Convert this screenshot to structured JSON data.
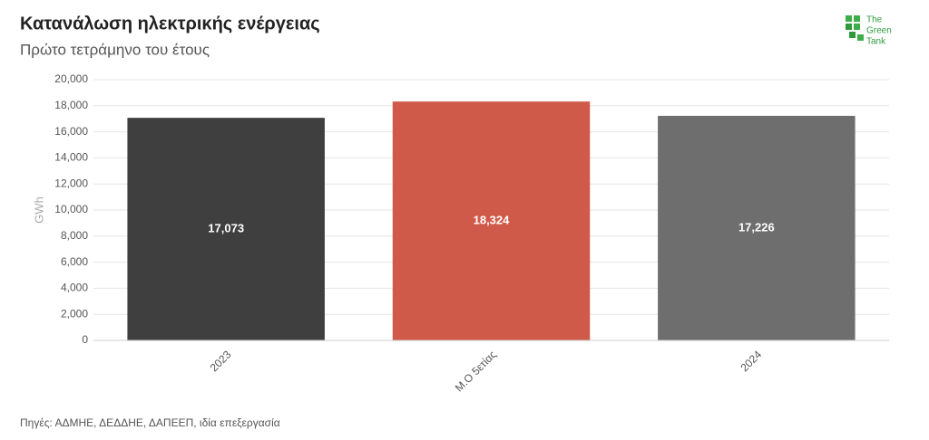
{
  "chart_data": {
    "type": "bar",
    "title": "Κατανάλωση ηλεκτρικής ενέργειας",
    "subtitle": "Πρώτο τετράμηνο του έτους",
    "y_label": "GWh",
    "categories": [
      "2023",
      "Μ.Ο 5ετίας",
      "2024"
    ],
    "values": [
      17073,
      18324,
      17226
    ],
    "value_labels": [
      "17,073",
      "18,324",
      "17,226"
    ],
    "colors": [
      "#3f3f3f",
      "#d05a4a",
      "#6e6e6e"
    ],
    "ylim": [
      0,
      20000
    ],
    "yticks": [
      0,
      {
        "value": 2000,
        "label": "2,000"
      },
      {
        "value": 4000,
        "label": "4,000"
      },
      {
        "value": 6000,
        "label": "6,000"
      },
      {
        "value": 8000,
        "label": "8,000"
      },
      {
        "value": 10000,
        "label": "10,000"
      },
      {
        "value": 12000,
        "label": "12,000"
      },
      {
        "value": 14000,
        "label": "14,000"
      },
      {
        "value": 16000,
        "label": "16,000"
      },
      {
        "value": 18000,
        "label": "18,000"
      },
      {
        "value": 20000,
        "label": "20,000"
      }
    ],
    "grid": true,
    "source": "Πηγές: ΑΔΜΗΕ, ΔΕΔΔΗΕ, ΔΑΠΕΕΠ, ιδία επεξεργασία",
    "logo": [
      "The",
      "Green",
      "Tank"
    ]
  }
}
